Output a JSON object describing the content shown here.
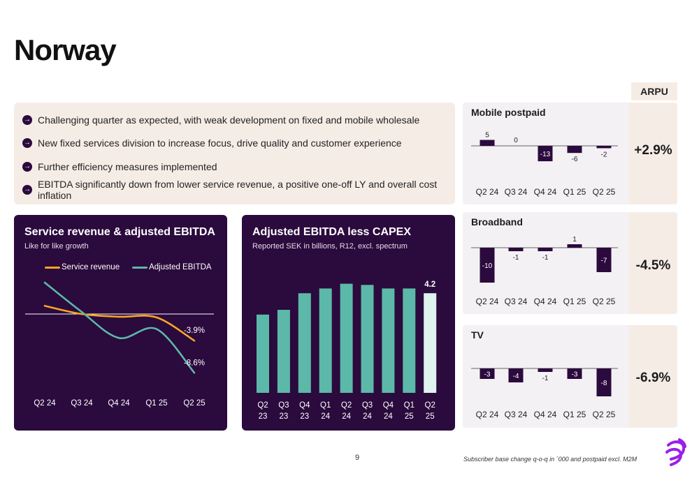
{
  "page": {
    "title": "Norway",
    "page_number": "9",
    "footnote": "Subscriber base change q-o-q in ´000 and postpaid excl. M2M"
  },
  "bullets": [
    "Challenging quarter as expected, with weak development on fixed and mobile wholesale",
    "New fixed services division to increase focus, drive quality and customer experience",
    "Further efficiency measures implemented",
    "EBITDA significantly down from lower service revenue, a positive one-off LY and overall cost inflation"
  ],
  "icons": {
    "bullet": "arrow-right-circle-icon",
    "logo": "telia-logo-icon"
  },
  "colors": {
    "brand_dark": "#2b0a3d",
    "brand_purple": "#9b1fe8",
    "service_revenue": "#f5a623",
    "adjusted_ebitda": "#5cb8a8",
    "highlight_bar": "#dff2ee",
    "panel_bg": "#f6ece6"
  },
  "arpu": {
    "header": "ARPU"
  },
  "chart_data": [
    {
      "type": "line",
      "title": "Service revenue & adjusted EBITDA",
      "subtitle": "Like for like growth",
      "categories": [
        "Q2 24",
        "Q3 24",
        "Q4 24",
        "Q1 25",
        "Q2 25"
      ],
      "series": [
        {
          "name": "Service revenue",
          "values": [
            1.2,
            0.0,
            -0.4,
            -0.5,
            -3.9
          ]
        },
        {
          "name": "Adjusted EBITDA",
          "values": [
            4.6,
            0.3,
            -3.5,
            -2.2,
            -8.6
          ]
        }
      ],
      "annotations": [
        "-3.9%",
        "-8.6%"
      ],
      "ylim": [
        -10,
        6
      ],
      "zero_line": true
    },
    {
      "type": "bar",
      "title": "Adjusted EBITDA less CAPEX",
      "subtitle": "Reported SEK in billions, R12, excl. spectrum",
      "categories": [
        [
          "Q2",
          "23"
        ],
        [
          "Q3",
          "23"
        ],
        [
          "Q4",
          "23"
        ],
        [
          "Q1",
          "24"
        ],
        [
          "Q2",
          "24"
        ],
        [
          "Q3",
          "24"
        ],
        [
          "Q4",
          "24"
        ],
        [
          "Q1",
          "25"
        ],
        [
          "Q2",
          "25"
        ]
      ],
      "values": [
        3.3,
        3.5,
        4.2,
        4.4,
        4.6,
        4.55,
        4.4,
        4.4,
        4.2
      ],
      "data_labels": [
        "",
        "",
        "",
        "",
        "",
        "",
        "",
        "",
        "4.2"
      ],
      "highlight_index": 8,
      "ylim": [
        0,
        5
      ]
    },
    {
      "type": "bar",
      "title": "Mobile postpaid",
      "categories": [
        "Q2 24",
        "Q3 24",
        "Q4 24",
        "Q1 25",
        "Q2 25"
      ],
      "values": [
        5,
        0,
        -13,
        -6,
        -2
      ],
      "data_labels": [
        "5",
        "0",
        "-13",
        "-6",
        "-2"
      ],
      "arpu": "+2.9%"
    },
    {
      "type": "bar",
      "title": "Broadband",
      "categories": [
        "Q2 24",
        "Q3 24",
        "Q4 24",
        "Q1 25",
        "Q2 25"
      ],
      "values": [
        -10,
        -1,
        -1,
        1,
        -7
      ],
      "data_labels": [
        "-10",
        "-1",
        "-1",
        "1",
        "-7"
      ],
      "arpu": "-4.5%"
    },
    {
      "type": "bar",
      "title": "TV",
      "categories": [
        "Q2 24",
        "Q3 24",
        "Q4 24",
        "Q1 25",
        "Q2 25"
      ],
      "values": [
        -3,
        -4,
        -1,
        -3,
        -8
      ],
      "data_labels": [
        "-3",
        "-4",
        "-1",
        "-3",
        "-8"
      ],
      "arpu": "-6.9%"
    }
  ]
}
